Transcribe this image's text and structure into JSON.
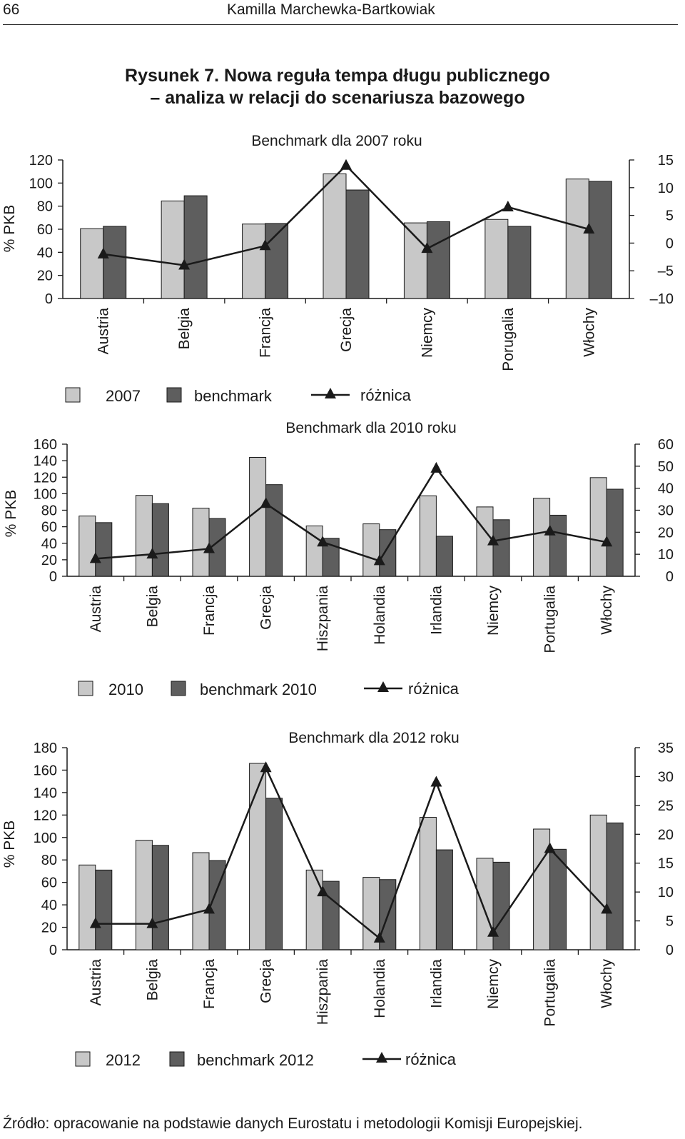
{
  "header": {
    "page_number": "66",
    "author": "Kamilla Marchewka-Bartkowiak"
  },
  "figure": {
    "title_line1": "Rysunek 7. Nowa reguła tempa długu publicznego",
    "title_line2": "– analiza w relacji do scenariusza bazowego"
  },
  "colors": {
    "bar_year": "#c8c8c8",
    "bar_benchmark": "#5e5e5e",
    "line": "#1a1a1a",
    "axis": "#1a1a1a"
  },
  "chart_data": [
    {
      "type": "bar",
      "title": "Benchmark dla 2007 roku",
      "ylabel": "% PKB",
      "categories": [
        "Austria",
        "Belgia",
        "Francja",
        "Grecja",
        "Niemcy",
        "Porugalia",
        "Włochy"
      ],
      "series": [
        {
          "name": "2007",
          "values": [
            60.5,
            84.5,
            64.5,
            108,
            65.5,
            68.5,
            103.5
          ]
        },
        {
          "name": "benchmark",
          "values": [
            62.5,
            89,
            65,
            94,
            66.5,
            62.5,
            101.5
          ]
        },
        {
          "name": "różnica",
          "axis": "right",
          "values": [
            -2,
            -4,
            -0.5,
            14,
            -1,
            6.5,
            2.5
          ]
        }
      ],
      "ylim": [
        0,
        120
      ],
      "yticks": [
        "120",
        "100",
        "80",
        "60",
        "40",
        "20",
        "0"
      ],
      "y2lim": [
        -10,
        15
      ],
      "y2ticks": [
        "15",
        "10",
        "5",
        "0",
        "–5",
        "–10"
      ],
      "legend": [
        "2007",
        "benchmark",
        "różnica"
      ]
    },
    {
      "type": "bar",
      "title": "Benchmark dla 2010 roku",
      "ylabel": "% PKB",
      "categories": [
        "Austria",
        "Belgia",
        "Francja",
        "Grecja",
        "Hiszpania",
        "Holandia",
        "Irlandia",
        "Niemcy",
        "Portugalia",
        "Włochy"
      ],
      "series": [
        {
          "name": "2010",
          "values": [
            73,
            98,
            82.5,
            144,
            61,
            63.5,
            97.5,
            84,
            94.5,
            119.5
          ]
        },
        {
          "name": "benchmark 2010",
          "values": [
            65,
            88,
            70,
            111,
            46,
            56.5,
            48.5,
            68.5,
            74,
            105.5
          ]
        },
        {
          "name": "różnica",
          "axis": "right",
          "values": [
            8,
            10,
            12.5,
            33,
            15.5,
            7,
            49,
            16,
            20.5,
            15.5
          ]
        }
      ],
      "ylim": [
        0,
        160
      ],
      "yticks": [
        "160",
        "140",
        "120",
        "100",
        "80",
        "60",
        "40",
        "20",
        "0"
      ],
      "y2lim": [
        0,
        60
      ],
      "y2ticks": [
        "60",
        "50",
        "40",
        "30",
        "20",
        "10",
        "0"
      ],
      "legend": [
        "2010",
        "benchmark 2010",
        "różnica"
      ]
    },
    {
      "type": "bar",
      "title": "Benchmark dla 2012 roku",
      "ylabel": "% PKB",
      "categories": [
        "Austria",
        "Belgia",
        "Francja",
        "Grecja",
        "Hiszpania",
        "Holandia",
        "Irlandia",
        "Niemcy",
        "Portugalia",
        "Włochy"
      ],
      "series": [
        {
          "name": "2012",
          "values": [
            75.5,
            97.5,
            86.5,
            166,
            71,
            64.5,
            118,
            81.5,
            107.5,
            120
          ]
        },
        {
          "name": "benchmark 2012",
          "values": [
            71,
            93,
            79.5,
            135,
            61,
            62.5,
            89,
            78,
            89.5,
            113
          ]
        },
        {
          "name": "różnica",
          "axis": "right",
          "values": [
            4.5,
            4.5,
            7,
            31.5,
            10,
            2,
            29,
            3,
            17.5,
            7
          ]
        }
      ],
      "ylim": [
        0,
        180
      ],
      "yticks": [
        "180",
        "160",
        "140",
        "120",
        "100",
        "80",
        "60",
        "40",
        "20",
        "0"
      ],
      "y2lim": [
        0,
        35
      ],
      "y2ticks": [
        "35",
        "30",
        "25",
        "20",
        "15",
        "10",
        "5",
        "0"
      ],
      "legend": [
        "2012",
        "benchmark 2012",
        "różnica"
      ]
    }
  ],
  "source_note": "Źródło: opracowanie na podstawie danych Eurostatu i metodologii Komisji Europejskiej."
}
